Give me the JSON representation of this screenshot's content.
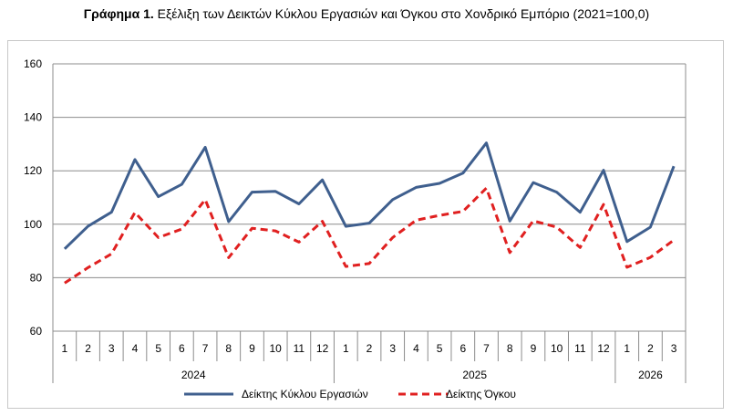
{
  "title": {
    "prefix": "Γράφημα 1.",
    "text": "Εξέλιξη των Δεικτών Κύκλου Εργασιών και Όγκου στο Χονδρικό Εμπόριο (2021=100,0)"
  },
  "chart_data": {
    "type": "line",
    "categories": [
      "1",
      "2",
      "3",
      "4",
      "5",
      "6",
      "7",
      "8",
      "9",
      "10",
      "11",
      "12",
      "1",
      "2",
      "3",
      "4",
      "5",
      "6",
      "7",
      "8",
      "9",
      "10",
      "11",
      "12",
      "1",
      "2",
      "3"
    ],
    "years": [
      {
        "label": "2024",
        "start": 0,
        "count": 12
      },
      {
        "label": "2025",
        "start": 12,
        "count": 12
      },
      {
        "label": "2026",
        "start": 24,
        "count": 3
      }
    ],
    "series": [
      {
        "name": "Δείκτης Κύκλου Εργασιών",
        "color": "#3f5f8e",
        "style": "solid",
        "values": [
          90.8,
          99.3,
          104.5,
          124.2,
          110.3,
          114.9,
          128.8,
          101.0,
          112.0,
          112.3,
          107.6,
          116.6,
          99.2,
          100.4,
          109.2,
          113.8,
          115.3,
          119.1,
          130.4,
          101.2,
          115.6,
          112.0,
          104.5,
          120.2,
          93.5,
          98.9,
          121.7
        ]
      },
      {
        "name": "Δείκτης Όγκου",
        "color": "#e02020",
        "style": "dashed",
        "values": [
          78.0,
          83.8,
          88.9,
          104.4,
          95.0,
          98.2,
          109.2,
          87.5,
          98.5,
          97.5,
          93.3,
          101.1,
          84.2,
          85.3,
          95.0,
          101.5,
          103.3,
          104.8,
          113.5,
          89.4,
          101.3,
          98.9,
          91.3,
          107.4,
          83.9,
          87.6,
          94.1
        ]
      }
    ],
    "ylim": [
      60,
      160
    ],
    "yticks": [
      "60",
      "80",
      "100",
      "120",
      "140",
      "160"
    ],
    "grid": true,
    "legend_position": "bottom"
  }
}
